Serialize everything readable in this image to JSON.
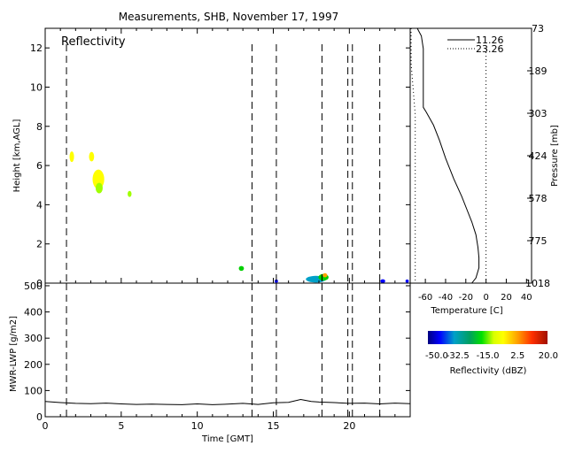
{
  "title": "Measurements, SHB, November 17, 1997",
  "chart_data": [
    {
      "id": "reflectivity",
      "type": "heatmap",
      "panel_label": "Reflectivity",
      "xlabel": "",
      "ylabel": "Height [km,AGL]",
      "xlim": [
        0,
        24
      ],
      "ylim": [
        0,
        13
      ],
      "yticks": [
        0,
        2,
        4,
        6,
        8,
        10,
        12
      ],
      "xticks": [
        0,
        5,
        10,
        15,
        20
      ],
      "grid": false,
      "sounding_times": [
        1.4,
        13.6,
        15.2,
        18.2,
        19.9,
        20.2,
        22.0
      ],
      "echoes": [
        {
          "t": 1.75,
          "h": 6.45,
          "dt": 0.18,
          "dh": 0.45,
          "dbz": -15
        },
        {
          "t": 3.05,
          "h": 6.45,
          "dt": 0.22,
          "dh": 0.4,
          "dbz": -15
        },
        {
          "t": 3.5,
          "h": 5.3,
          "dt": 0.65,
          "dh": 0.9,
          "dbz": -12
        },
        {
          "t": 3.55,
          "h": 4.85,
          "dt": 0.35,
          "dh": 0.45,
          "dbz": -20
        },
        {
          "t": 5.55,
          "h": 4.55,
          "dt": 0.14,
          "dh": 0.22,
          "dbz": -18
        },
        {
          "t": 12.9,
          "h": 0.75,
          "dt": 0.22,
          "dh": 0.16,
          "dbz": -30
        },
        {
          "t": 15.2,
          "h": 0.1,
          "dt": 0.1,
          "dh": 0.08,
          "dbz": -50
        },
        {
          "t": 17.8,
          "h": 0.2,
          "dt": 1.2,
          "dh": 0.25,
          "dbz": -45
        },
        {
          "t": 18.3,
          "h": 0.3,
          "dt": 0.55,
          "dh": 0.25,
          "dbz": -25
        },
        {
          "t": 18.4,
          "h": 0.4,
          "dt": 0.18,
          "dh": 0.12,
          "dbz": -10
        },
        {
          "t": 22.2,
          "h": 0.1,
          "dt": 0.2,
          "dh": 0.1,
          "dbz": -50
        },
        {
          "t": 23.8,
          "h": 0.1,
          "dt": 0.1,
          "dh": 0.08,
          "dbz": -50
        }
      ]
    },
    {
      "id": "lwp",
      "type": "line",
      "xlabel": "Time [GMT]",
      "ylabel": "MWR-LWP [g/m2]",
      "xlim": [
        0,
        24
      ],
      "ylim": [
        0,
        510
      ],
      "xticks": [
        0,
        5,
        10,
        15,
        20
      ],
      "yticks": [
        0,
        100,
        200,
        300,
        400,
        500
      ],
      "sounding_times": [
        1.4,
        13.6,
        15.2,
        18.2,
        19.9,
        20.2,
        22.0
      ],
      "series": [
        {
          "x": [
            0,
            1,
            2,
            3,
            4,
            5,
            6,
            7,
            8,
            9,
            10,
            11,
            12,
            13,
            14,
            15,
            16,
            16.8,
            17.5,
            18,
            19,
            20,
            21,
            22,
            23,
            24
          ],
          "values": [
            58,
            54,
            51,
            50,
            52,
            49,
            47,
            48,
            47,
            46,
            49,
            46,
            48,
            51,
            47,
            53,
            55,
            66,
            58,
            56,
            54,
            51,
            52,
            49,
            52,
            50
          ]
        }
      ]
    },
    {
      "id": "sounding",
      "type": "line",
      "xlabel": "Temperature [C]",
      "ylabel": "Pressure [mb]",
      "xticks": [
        -60,
        -40,
        -20,
        0,
        20,
        40
      ],
      "xlim": [
        -75,
        45
      ],
      "pressure_ticks": [
        73,
        189,
        303,
        424,
        578,
        775,
        1018
      ],
      "legend_position": "top-right",
      "series": [
        {
          "name": "11.26",
          "style": "solid",
          "points": [
            [
              -68,
              0.0
            ],
            [
              -64,
              3.0
            ],
            [
              -62,
              8.0
            ],
            [
              -62,
              14.0
            ],
            [
              -62,
              20.0
            ],
            [
              -62,
              26.0
            ],
            [
              -62,
              31.0
            ],
            [
              -59,
              33.0
            ],
            [
              -52,
              38.0
            ],
            [
              -46,
              44.0
            ],
            [
              -40,
              51.0
            ],
            [
              -32,
              59.0
            ],
            [
              -24,
              66.0
            ],
            [
              -19,
              71.0
            ],
            [
              -14,
              76.0
            ],
            [
              -10,
              81.0
            ],
            [
              -8,
              86.0
            ],
            [
              -7,
              90.0
            ],
            [
              -7,
              94.0
            ],
            [
              -10,
              98.0
            ],
            [
              -14,
              100.0
            ]
          ]
        },
        {
          "name": "23.26",
          "style": "dotted",
          "points": [
            [
              -78,
              0.0
            ],
            [
              -76,
              5.0
            ],
            [
              -74,
              14.0
            ],
            [
              -72,
              24.0
            ],
            [
              -70,
              34.0
            ],
            [
              -70,
              100.0
            ]
          ]
        },
        {
          "name": "",
          "style": "dotted",
          "points": [
            [
              0,
              8.0
            ],
            [
              0,
              100.0
            ]
          ]
        }
      ]
    },
    {
      "id": "colorbar",
      "type": "heatmap",
      "xlabel": "Reflectivity (dBZ)",
      "range": [
        -50,
        20
      ],
      "tick_labels": [
        "-50.0",
        "-32.5",
        "-15.0",
        "2.5",
        "20.0"
      ],
      "tick_values": [
        -50,
        -32.5,
        -15,
        2.5,
        20
      ]
    }
  ]
}
